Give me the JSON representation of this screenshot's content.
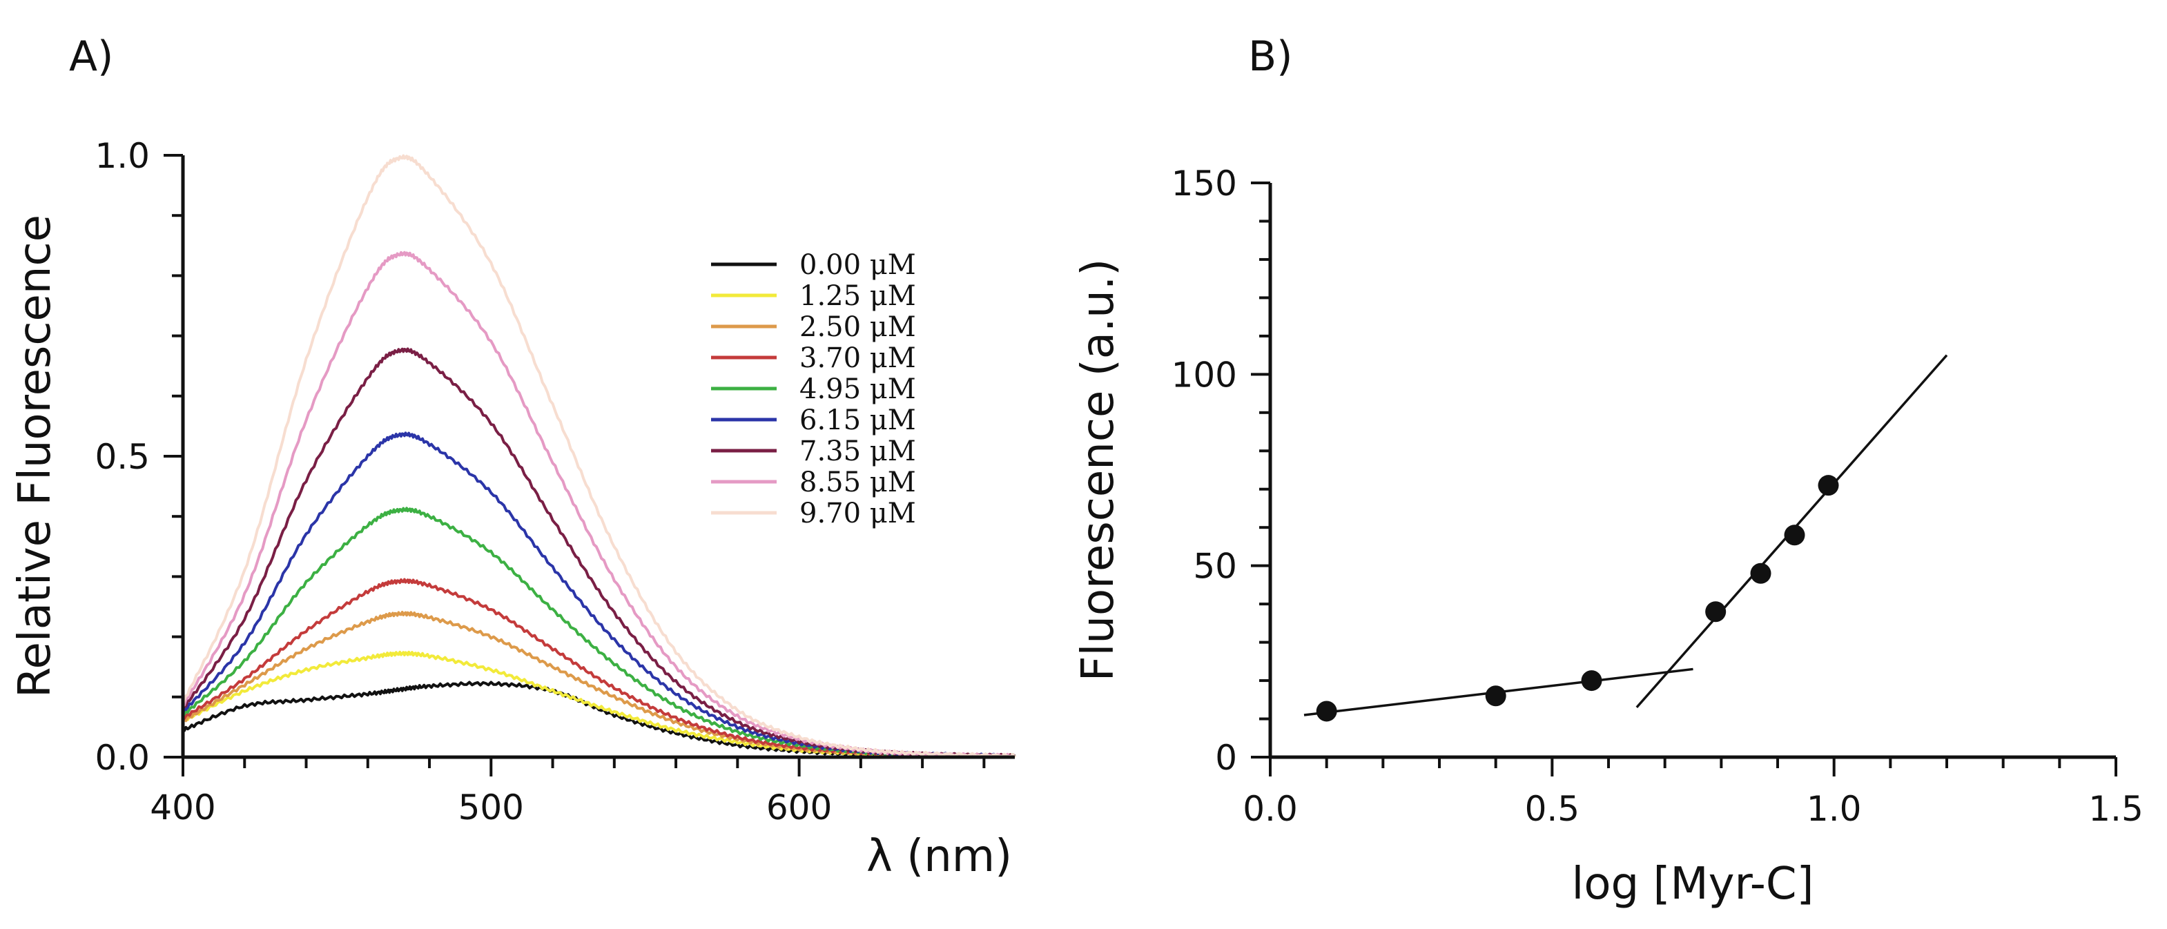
{
  "chart_data": [
    {
      "type": "line",
      "panel": "A)",
      "xlabel": "λ (nm)",
      "ylabel": "Relative Fluorescence",
      "xlim": [
        400,
        670
      ],
      "ylim": [
        0,
        1.0
      ],
      "x_ticks": [
        400,
        500,
        600
      ],
      "y_ticks": [
        "0.0",
        "0.5",
        "1.0"
      ],
      "legend_position": "right",
      "x": [
        400,
        420,
        440,
        460,
        470,
        480,
        500,
        520,
        540,
        560,
        580,
        600,
        620,
        640,
        670
      ],
      "series": [
        {
          "name": "0.00 μM",
          "color": "#111111",
          "values": [
            0.045,
            0.085,
            0.095,
            0.105,
            0.112,
            0.118,
            0.122,
            0.11,
            0.07,
            0.04,
            0.02,
            0.01,
            0.005,
            0.003,
            0.002
          ]
        },
        {
          "name": "1.25 μM",
          "color": "#f2ea3a",
          "values": [
            0.06,
            0.11,
            0.145,
            0.165,
            0.172,
            0.168,
            0.145,
            0.11,
            0.075,
            0.045,
            0.025,
            0.012,
            0.006,
            0.003,
            0.002
          ]
        },
        {
          "name": "2.50 μM",
          "color": "#dd9a4a",
          "values": [
            0.06,
            0.12,
            0.18,
            0.225,
            0.238,
            0.232,
            0.2,
            0.15,
            0.1,
            0.058,
            0.03,
            0.014,
            0.007,
            0.004,
            0.002
          ]
        },
        {
          "name": "3.70 μM",
          "color": "#c43b3b",
          "values": [
            0.065,
            0.13,
            0.21,
            0.275,
            0.292,
            0.285,
            0.245,
            0.18,
            0.115,
            0.065,
            0.033,
            0.016,
            0.008,
            0.004,
            0.002
          ]
        },
        {
          "name": "4.95 μM",
          "color": "#3cb043",
          "values": [
            0.07,
            0.16,
            0.29,
            0.385,
            0.41,
            0.4,
            0.34,
            0.245,
            0.155,
            0.085,
            0.042,
            0.02,
            0.009,
            0.004,
            0.002
          ]
        },
        {
          "name": "6.15 μM",
          "color": "#2b35a8",
          "values": [
            0.075,
            0.19,
            0.37,
            0.5,
            0.535,
            0.52,
            0.44,
            0.315,
            0.195,
            0.105,
            0.05,
            0.023,
            0.01,
            0.005,
            0.002
          ]
        },
        {
          "name": "7.35 μM",
          "color": "#7a1f45",
          "values": [
            0.08,
            0.23,
            0.46,
            0.63,
            0.675,
            0.655,
            0.555,
            0.395,
            0.24,
            0.125,
            0.058,
            0.026,
            0.011,
            0.005,
            0.002
          ]
        },
        {
          "name": "8.55 μM",
          "color": "#e59ac4",
          "values": [
            0.085,
            0.27,
            0.56,
            0.78,
            0.835,
            0.81,
            0.69,
            0.49,
            0.295,
            0.15,
            0.068,
            0.03,
            0.012,
            0.005,
            0.002
          ]
        },
        {
          "name": "9.70 μM",
          "color": "#f7ddd0",
          "values": [
            0.09,
            0.31,
            0.66,
            0.93,
            0.995,
            0.965,
            0.82,
            0.585,
            0.35,
            0.175,
            0.078,
            0.033,
            0.013,
            0.006,
            0.002
          ]
        }
      ]
    },
    {
      "type": "scatter",
      "panel": "B)",
      "xlabel": "log [Myr-C]",
      "ylabel": "Fluorescence  (a.u.)",
      "xlim": [
        0,
        1.5
      ],
      "ylim": [
        0,
        150
      ],
      "x_ticks": [
        "0.0",
        "0.5",
        "1.0",
        "1.5"
      ],
      "y_ticks": [
        "0",
        "50",
        "100",
        "150"
      ],
      "points": [
        {
          "x": 0.1,
          "y": 12
        },
        {
          "x": 0.4,
          "y": 16
        },
        {
          "x": 0.57,
          "y": 20
        },
        {
          "x": 0.79,
          "y": 38
        },
        {
          "x": 0.87,
          "y": 48
        },
        {
          "x": 0.93,
          "y": 58
        },
        {
          "x": 0.99,
          "y": 71
        }
      ],
      "fit_lines": [
        {
          "x": [
            0.06,
            0.75
          ],
          "y": [
            11,
            23
          ]
        },
        {
          "x": [
            0.65,
            1.2
          ],
          "y": [
            13,
            105
          ]
        }
      ]
    }
  ]
}
